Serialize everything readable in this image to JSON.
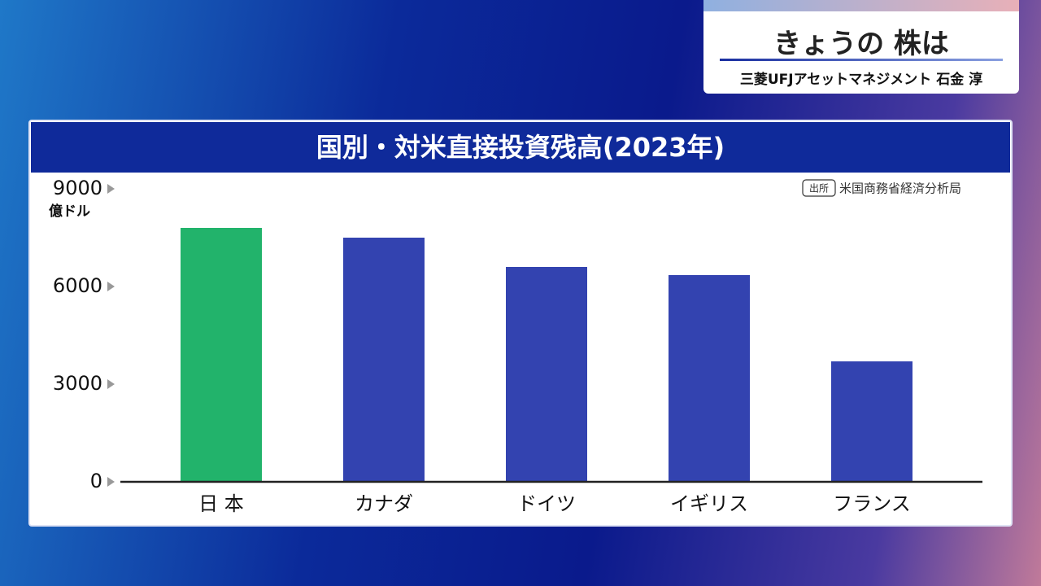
{
  "header": {
    "title": "きょうの 株は",
    "guest": "三菱UFJアセットマネジメント 石金 淳"
  },
  "chart_data": {
    "type": "bar",
    "title": "国別・対米直接投資残高(2023年)",
    "unit": "億ドル",
    "source_tag": "出所",
    "source": "米国商務省経済分析局",
    "categories": [
      "日 本",
      "カナダ",
      "ドイツ",
      "イギリス",
      "フランス"
    ],
    "values": [
      7800,
      7500,
      6600,
      6350,
      3700
    ],
    "colors": [
      "#22b36b",
      "#3343b0",
      "#3343b0",
      "#3343b0",
      "#3343b0"
    ],
    "ylim": [
      0,
      9000
    ],
    "yticks": [
      0,
      3000,
      6000,
      9000
    ],
    "grid": false
  }
}
